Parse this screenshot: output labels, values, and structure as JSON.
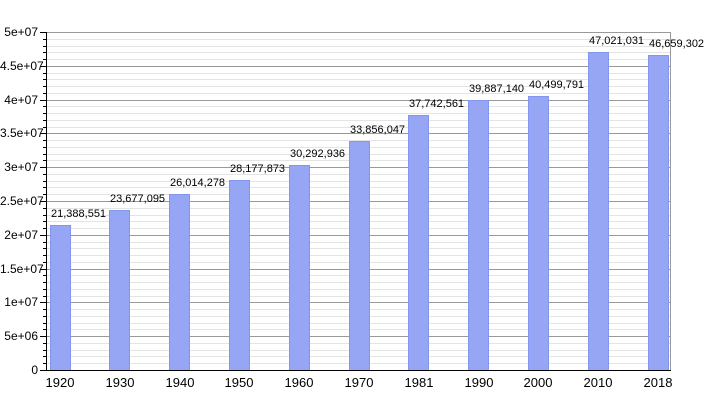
{
  "chart_data": {
    "type": "bar",
    "title": "",
    "xlabel": "",
    "ylabel": "",
    "categories": [
      "1920",
      "1930",
      "1940",
      "1950",
      "1960",
      "1970",
      "1981",
      "1990",
      "2000",
      "2010",
      "2018"
    ],
    "values": [
      21388551,
      23677095,
      26014278,
      28177873,
      30292936,
      33856047,
      37742561,
      39887140,
      40499791,
      47021031,
      46659302
    ],
    "value_labels": [
      "21,388,551",
      "23,677,095",
      "26,014,278",
      "28,177,873",
      "30,292,936",
      "33,856,047",
      "37,742,561",
      "39,887,140",
      "40,499,791",
      "47,021,031",
      "46,659,302"
    ],
    "ylim": [
      0,
      50000000
    ],
    "y_major_step": 5000000,
    "y_minor_step": 1000000,
    "y_tick_labels": [
      "0",
      "5e+06",
      "1e+07",
      "1.5e+07",
      "2e+07",
      "2.5e+07",
      "3e+07",
      "3.5e+07",
      "4e+07",
      "4.5e+07",
      "5e+07"
    ],
    "grid": "major and minor horizontal gridlines",
    "legend_position": "none"
  },
  "colors": {
    "background": "#ffffff",
    "bar_fill": "#96a5f4",
    "bar_border": "#8296ee",
    "grid_major": "#999999",
    "grid_minor": "#e4e4e4",
    "axis": "#000000",
    "text": "#000000"
  }
}
